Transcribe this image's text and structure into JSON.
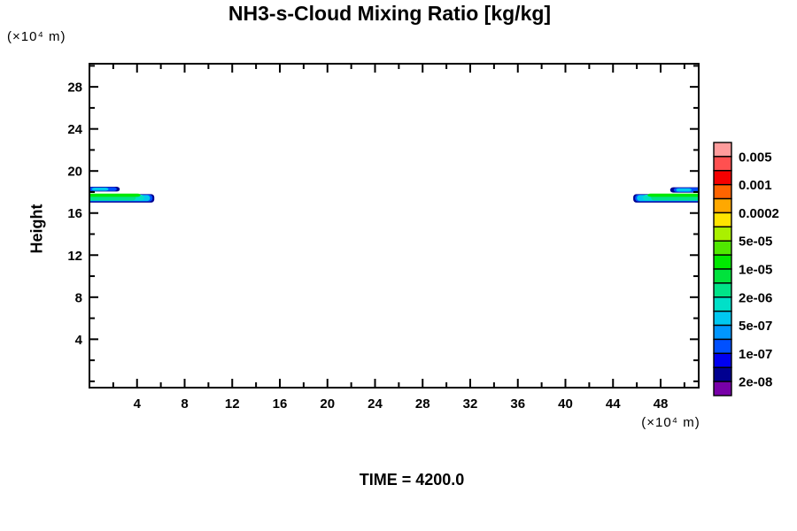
{
  "title": "NH3-s-Cloud Mixing Ratio [kg/kg]",
  "time_label": "TIME = 4200.0",
  "axes": {
    "y_label": "Height",
    "y_unit": "(×10⁴ m)",
    "x_unit": "(×10⁴ m)"
  },
  "chart_data": {
    "type": "filled_contour",
    "title": "NH3-s-Cloud Mixing Ratio [kg/kg]",
    "ylabel": "Height",
    "x_unit": "(×10⁴ m)",
    "y_unit": "(×10⁴ m)",
    "time": "TIME = 4200.0",
    "x_range": [
      0,
      51.2
    ],
    "y_range": [
      -0.6,
      30.2
    ],
    "x_ticks_major": [
      4,
      8,
      12,
      16,
      20,
      24,
      28,
      32,
      36,
      40,
      44,
      48
    ],
    "x_ticks_minor": [
      2,
      6,
      10,
      14,
      18,
      22,
      26,
      30,
      34,
      38,
      42,
      46,
      50
    ],
    "y_ticks_major": [
      4,
      8,
      12,
      16,
      20,
      24,
      28
    ],
    "y_ticks_minor": [
      0,
      2,
      6,
      10,
      14,
      18,
      22,
      26,
      30
    ],
    "grid": false,
    "legend_position": "right",
    "contour_levels": [
      "2e-08",
      "5e-08",
      "1e-07",
      "2e-07",
      "5e-07",
      "1e-06",
      "2e-06",
      "5e-06",
      "1e-05",
      "2e-05",
      "5e-05",
      "0.0001",
      "0.0002",
      "0.0005",
      "0.001",
      "0.002",
      "0.005"
    ],
    "colorbar": {
      "colors_top_to_bottom": [
        "#FF9C9C",
        "#FF5050",
        "#F40000",
        "#FF6400",
        "#FFA800",
        "#FFE400",
        "#AAF000",
        "#50E800",
        "#00E800",
        "#00E23C",
        "#00E388",
        "#00E0C8",
        "#00C8F0",
        "#0096FF",
        "#0050FF",
        "#0000F0",
        "#000090",
        "#7800A8"
      ],
      "labels_top_to_bottom": [
        "0.005",
        "0.001",
        "0.0002",
        "5e-05",
        "1e-05",
        "2e-06",
        "5e-07",
        "1e-07",
        "2e-08"
      ],
      "labeled_boundaries_from_top": [
        1,
        3,
        5,
        7,
        9,
        11,
        13,
        15,
        17
      ]
    },
    "features": [
      {
        "name": "left-cloud-streak",
        "round": "right",
        "layers": [
          {
            "level": "2e-08",
            "color": "#000090",
            "x": [
              -0.3,
              5.45
            ],
            "y": [
              17.0,
              17.8
            ]
          },
          {
            "level": "1e-07",
            "color": "#0050FF",
            "x": [
              -0.3,
              5.3
            ],
            "y": [
              17.1,
              17.75
            ]
          },
          {
            "level": "5e-07",
            "color": "#00C8F0",
            "x": [
              -0.3,
              5.1
            ],
            "y": [
              17.15,
              17.7
            ]
          },
          {
            "level": "1e-06",
            "color": "#00E0C8",
            "x": [
              -0.3,
              4.6
            ],
            "y": [
              17.2,
              17.75
            ]
          },
          {
            "level": "2e-06",
            "color": "#00E388",
            "x": [
              -0.3,
              3.9
            ],
            "y": [
              17.2,
              17.8
            ]
          },
          {
            "level": "1e-05",
            "color": "#00E800",
            "x": [
              -0.3,
              4.3
            ],
            "y": [
              17.55,
              17.85
            ]
          }
        ]
      },
      {
        "name": "left-cloud-upper",
        "round": "right",
        "layers": [
          {
            "level": "2e-08",
            "color": "#000090",
            "x": [
              -0.3,
              2.55
            ],
            "y": [
              18.05,
              18.5
            ]
          },
          {
            "level": "1e-07",
            "color": "#0050FF",
            "x": [
              -0.3,
              2.3
            ],
            "y": [
              18.1,
              18.45
            ]
          },
          {
            "level": "5e-07",
            "color": "#00C8F0",
            "x": [
              0.2,
              1.6
            ],
            "y": [
              18.12,
              18.42
            ]
          }
        ]
      },
      {
        "name": "right-cloud-streak",
        "round": "left",
        "layers": [
          {
            "level": "2e-08",
            "color": "#000090",
            "x": [
              45.7,
              51.5
            ],
            "y": [
              17.0,
              17.8
            ]
          },
          {
            "level": "1e-07",
            "color": "#0050FF",
            "x": [
              45.85,
              51.5
            ],
            "y": [
              17.1,
              17.75
            ]
          },
          {
            "level": "5e-07",
            "color": "#00C8F0",
            "x": [
              46.0,
              51.5
            ],
            "y": [
              17.15,
              17.7
            ]
          },
          {
            "level": "1e-06",
            "color": "#00E0C8",
            "x": [
              46.5,
              51.5
            ],
            "y": [
              17.2,
              17.75
            ]
          },
          {
            "level": "2e-06",
            "color": "#00E388",
            "x": [
              47.2,
              51.5
            ],
            "y": [
              17.2,
              17.8
            ]
          },
          {
            "level": "1e-05",
            "color": "#00E800",
            "x": [
              46.9,
              51.5
            ],
            "y": [
              17.55,
              17.85
            ]
          }
        ]
      },
      {
        "name": "right-cloud-upper",
        "round": "left",
        "layers": [
          {
            "level": "2e-08",
            "color": "#000090",
            "x": [
              48.8,
              51.5
            ],
            "y": [
              17.95,
              18.45
            ]
          },
          {
            "level": "1e-07",
            "color": "#0050FF",
            "x": [
              49.1,
              51.5
            ],
            "y": [
              18.0,
              18.4
            ]
          },
          {
            "level": "5e-07",
            "color": "#00C8F0",
            "x": [
              49.3,
              50.6
            ],
            "y": [
              18.05,
              18.35
            ]
          }
        ]
      }
    ]
  }
}
